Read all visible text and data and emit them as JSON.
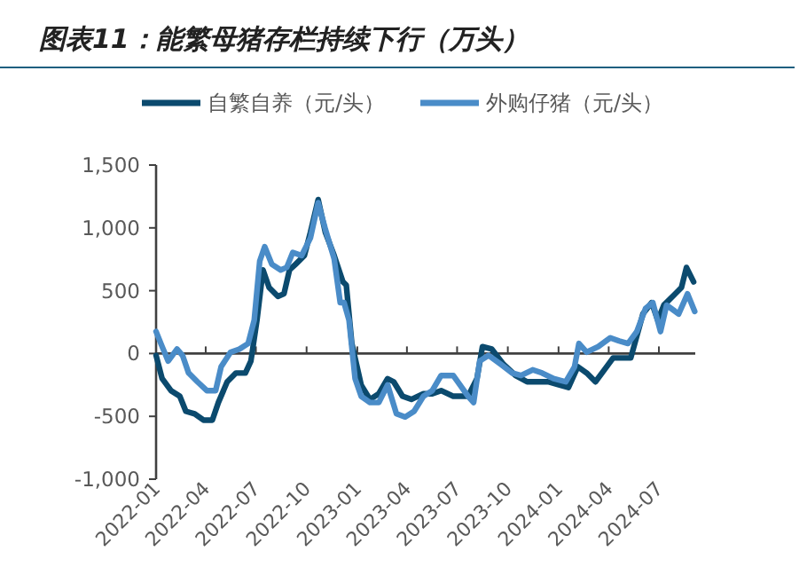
{
  "chart_data": {
    "type": "line",
    "title": "图表11：能繁母猪存栏持续下行（万头）",
    "xlim": [
      "2022-01-01",
      "2024-09-05"
    ],
    "xticks": [
      "2022-01",
      "2022-04",
      "2022-07",
      "2022-10",
      "2023-01",
      "2023-04",
      "2023-07",
      "2023-10",
      "2024-01",
      "2024-04",
      "2024-07"
    ],
    "ylim": [
      -1000,
      1500
    ],
    "yticks": [
      {
        "value": -1000,
        "label": "-1,000"
      },
      -500,
      0,
      500,
      {
        "value": 1000,
        "label": "1,000"
      },
      {
        "value": 1500,
        "label": "1,500"
      }
    ],
    "legend": "top",
    "marker": "none",
    "line_style": "solid",
    "series": [
      {
        "name": "自繁自养（元/头）",
        "color": "#0b4a6e",
        "x": [
          "2022-01-01",
          "2022-01-12",
          "2022-01-28",
          "2022-02-13",
          "2022-02-24",
          "2022-03-12",
          "2022-03-28",
          "2022-04-13",
          "2022-04-24",
          "2022-05-10",
          "2022-05-26",
          "2022-06-12",
          "2022-06-22",
          "2022-07-03",
          "2022-07-14",
          "2022-07-25",
          "2022-08-10",
          "2022-08-21",
          "2022-08-31",
          "2022-09-11",
          "2022-09-27",
          "2022-10-08",
          "2022-10-22",
          "2022-11-04",
          "2022-11-20",
          "2022-12-06",
          "2022-12-12",
          "2022-12-22",
          "2023-01-08",
          "2023-01-24",
          "2023-02-09",
          "2023-02-25",
          "2023-03-08",
          "2023-03-24",
          "2023-04-09",
          "2023-05-01",
          "2023-05-17",
          "2023-06-02",
          "2023-06-24",
          "2023-07-21",
          "2023-08-06",
          "2023-08-16",
          "2023-09-02",
          "2023-09-23",
          "2023-10-15",
          "2023-11-05",
          "2023-11-21",
          "2023-12-13",
          "2024-01-03",
          "2024-01-19",
          "2024-02-05",
          "2024-02-21",
          "2024-03-08",
          "2024-03-24",
          "2024-04-09",
          "2024-04-25",
          "2024-05-11",
          "2024-06-02",
          "2024-06-18",
          "2024-06-29",
          "2024-07-10",
          "2024-07-26",
          "2024-08-11",
          "2024-08-20",
          "2024-09-02"
        ],
        "values": [
          -15,
          -200,
          -295,
          -340,
          -460,
          -480,
          -530,
          -530,
          -390,
          -225,
          -155,
          -155,
          -60,
          265,
          665,
          525,
          455,
          475,
          665,
          710,
          780,
          965,
          1225,
          965,
          780,
          570,
          545,
          80,
          -250,
          -365,
          -320,
          -200,
          -225,
          -340,
          -365,
          -320,
          -320,
          -295,
          -340,
          -340,
          -200,
          55,
          35,
          -85,
          -175,
          -225,
          -225,
          -225,
          -250,
          -270,
          -105,
          -155,
          -225,
          -130,
          -35,
          -35,
          -35,
          315,
          405,
          265,
          385,
          455,
          525,
          685,
          570
        ]
      },
      {
        "name": "外购仔猪（元/头）",
        "color": "#4a8cc8",
        "x": [
          "2022-01-01",
          "2022-01-12",
          "2022-01-23",
          "2022-02-08",
          "2022-02-18",
          "2022-03-01",
          "2022-03-17",
          "2022-04-03",
          "2022-04-19",
          "2022-04-29",
          "2022-05-16",
          "2022-06-01",
          "2022-06-17",
          "2022-06-28",
          "2022-07-08",
          "2022-07-17",
          "2022-07-30",
          "2022-08-15",
          "2022-08-26",
          "2022-09-06",
          "2022-09-22",
          "2022-10-08",
          "2022-10-22",
          "2022-11-04",
          "2022-11-20",
          "2022-12-01",
          "2022-12-08",
          "2022-12-17",
          "2022-12-28",
          "2023-01-08",
          "2023-01-24",
          "2023-02-09",
          "2023-02-25",
          "2023-03-13",
          "2023-03-29",
          "2023-04-14",
          "2023-05-01",
          "2023-05-17",
          "2023-06-02",
          "2023-06-24",
          "2023-07-21",
          "2023-07-31",
          "2023-08-11",
          "2023-08-27",
          "2023-09-18",
          "2023-10-09",
          "2023-10-25",
          "2023-11-15",
          "2023-12-02",
          "2023-12-23",
          "2024-01-14",
          "2024-01-30",
          "2024-02-07",
          "2024-02-21",
          "2024-03-13",
          "2024-04-04",
          "2024-04-20",
          "2024-05-06",
          "2024-05-22",
          "2024-06-07",
          "2024-06-20",
          "2024-07-04",
          "2024-07-15",
          "2024-08-06",
          "2024-08-22",
          "2024-09-04"
        ],
        "values": [
          175,
          55,
          -60,
          35,
          -15,
          -155,
          -225,
          -295,
          -295,
          -105,
          10,
          35,
          80,
          265,
          735,
          850,
          710,
          665,
          685,
          805,
          780,
          920,
          1200,
          990,
          755,
          405,
          405,
          265,
          -200,
          -340,
          -390,
          -390,
          -250,
          -480,
          -505,
          -460,
          -340,
          -295,
          -175,
          -175,
          -340,
          -390,
          -60,
          -15,
          -85,
          -155,
          -175,
          -130,
          -155,
          -200,
          -225,
          -105,
          80,
          10,
          55,
          125,
          100,
          80,
          175,
          360,
          405,
          175,
          385,
          315,
          475,
          335
        ]
      }
    ]
  }
}
